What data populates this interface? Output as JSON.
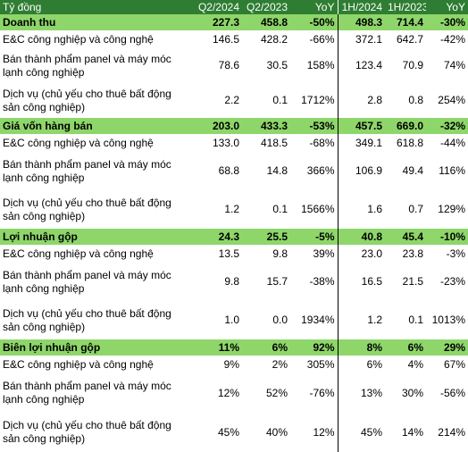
{
  "header": {
    "label": "Tỷ đồng",
    "cols": [
      "Q2/2024",
      "Q2/2023",
      "YoY",
      "1H/2024",
      "1H/2023",
      "YoY"
    ]
  },
  "rows": [
    {
      "type": "section",
      "label": "Doanh thu",
      "values": [
        "227.3",
        "458.8",
        "-50%",
        "498.3",
        "714.4",
        "-30%"
      ]
    },
    {
      "type": "sub",
      "label": "E&C công nghiệp và công nghệ",
      "values": [
        "146.5",
        "428.2",
        "-66%",
        "372.1",
        "642.7",
        "-42%"
      ]
    },
    {
      "type": "tall",
      "label": "Bán thành phẩm panel và máy móc lạnh công nghiệp",
      "values": [
        "78.6",
        "30.5",
        "158%",
        "123.4",
        "70.9",
        "74%"
      ]
    },
    {
      "type": "tall",
      "label": "Dịch vụ (chủ yếu cho thuê bất động sản công nghiệp)",
      "values": [
        "2.2",
        "0.1",
        "1712%",
        "2.8",
        "0.8",
        "254%"
      ]
    },
    {
      "type": "section",
      "label": "Giá vốn hàng bán",
      "values": [
        "203.0",
        "433.3",
        "-53%",
        "457.5",
        "669.0",
        "-32%"
      ]
    },
    {
      "type": "sub",
      "label": "E&C công nghiệp và công nghệ",
      "values": [
        "133.0",
        "418.5",
        "-68%",
        "349.1",
        "618.8",
        "-44%"
      ]
    },
    {
      "type": "tall2",
      "label": "Bán thành phẩm panel và máy móc lạnh công nghiệp",
      "values": [
        "68.8",
        "14.8",
        "366%",
        "106.9",
        "49.4",
        "116%"
      ]
    },
    {
      "type": "tall2",
      "label": "Dịch vụ (chủ yếu cho thuê bất động sản công nghiệp)",
      "values": [
        "1.2",
        "0.1",
        "1566%",
        "1.6",
        "0.7",
        "129%"
      ]
    },
    {
      "type": "section",
      "label": "Lợi nhuận gộp",
      "values": [
        "24.3",
        "25.5",
        "-5%",
        "40.8",
        "45.4",
        "-10%"
      ]
    },
    {
      "type": "sub",
      "label": "E&C công nghiệp và công nghệ",
      "values": [
        "13.5",
        "9.8",
        "39%",
        "23.0",
        "23.8",
        "-3%"
      ]
    },
    {
      "type": "tall2",
      "label": "Bán thành phẩm panel và máy móc lạnh công nghiệp",
      "values": [
        "9.8",
        "15.7",
        "-38%",
        "16.5",
        "21.5",
        "-23%"
      ]
    },
    {
      "type": "tall2",
      "label": "Dịch vụ (chủ yếu cho thuê bất động sản công nghiệp)",
      "values": [
        "1.0",
        "0.0",
        "1934%",
        "1.2",
        "0.1",
        "1013%"
      ]
    },
    {
      "type": "section",
      "label": "Biên lợi nhuận gộp",
      "values": [
        "11%",
        "6%",
        "92%",
        "8%",
        "6%",
        "29%"
      ]
    },
    {
      "type": "sub",
      "label": "E&C công nghiệp và công nghệ",
      "values": [
        "9%",
        "2%",
        "305%",
        "6%",
        "4%",
        "67%"
      ]
    },
    {
      "type": "tall3",
      "label": "Bán thành phẩm panel và máy móc lạnh công nghiệp",
      "values": [
        "12%",
        "52%",
        "-76%",
        "13%",
        "30%",
        "-56%"
      ]
    },
    {
      "type": "tall3",
      "label": "Dịch vụ (chủ yếu cho thuê bất động sản công nghiệp)",
      "values": [
        "45%",
        "40%",
        "12%",
        "45%",
        "14%",
        "214%"
      ]
    }
  ]
}
